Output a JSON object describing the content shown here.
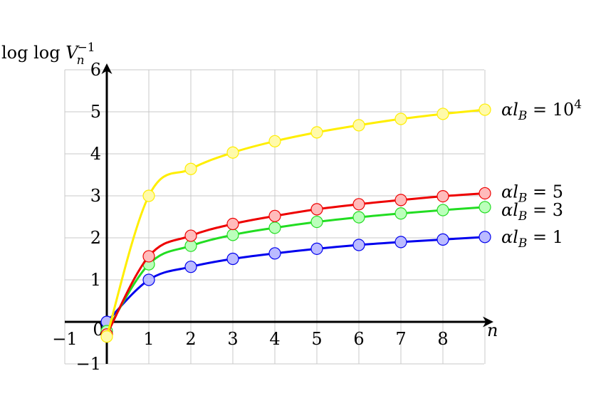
{
  "chart_data": {
    "type": "line",
    "ylabel": "log log V_n^{-1}",
    "xlabel": "n",
    "xlim": [
      -1,
      9
    ],
    "ylim": [
      -1,
      6
    ],
    "x_ticks": [
      -1,
      0,
      1,
      2,
      3,
      4,
      5,
      6,
      7,
      8
    ],
    "y_ticks": [
      -1,
      1,
      2,
      3,
      4,
      5,
      6
    ],
    "x_tick_labels": [
      "−1",
      "0",
      "1",
      "2",
      "3",
      "4",
      "5",
      "6",
      "7",
      "8"
    ],
    "y_tick_labels": [
      "−1",
      "1",
      "2",
      "3",
      "4",
      "5",
      "6"
    ],
    "grid": true,
    "series": [
      {
        "name": "αl_B = 10^4",
        "label_main": "αl",
        "label_sub": "B",
        "label_rest": " = 10",
        "label_sup": "4",
        "color": "#ffee00",
        "fill": "#fffaaa",
        "x": [
          0,
          1,
          2,
          3,
          4,
          5,
          6,
          7,
          8,
          9
        ],
        "y": [
          -0.35,
          3.0,
          3.64,
          4.03,
          4.3,
          4.51,
          4.68,
          4.83,
          4.95,
          5.05
        ]
      },
      {
        "name": "αl_B = 5",
        "label_main": "αl",
        "label_sub": "B",
        "label_rest": " = 5",
        "label_sup": "",
        "color": "#ee0000",
        "fill": "#ffbbbb",
        "x": [
          0,
          1,
          2,
          3,
          4,
          5,
          6,
          7,
          8,
          9
        ],
        "y": [
          -0.3,
          1.56,
          2.05,
          2.33,
          2.52,
          2.68,
          2.8,
          2.9,
          2.99,
          3.06
        ]
      },
      {
        "name": "αl_B = 3",
        "label_main": "αl",
        "label_sub": "B",
        "label_rest": " = 3",
        "label_sup": "",
        "color": "#22dd22",
        "fill": "#bbffbb",
        "x": [
          0,
          1,
          2,
          3,
          4,
          5,
          6,
          7,
          8,
          9
        ],
        "y": [
          -0.22,
          1.37,
          1.81,
          2.07,
          2.24,
          2.38,
          2.49,
          2.58,
          2.66,
          2.73
        ]
      },
      {
        "name": "αl_B = 1",
        "label_main": "αl",
        "label_sub": "B",
        "label_rest": " = 1",
        "label_sup": "",
        "color": "#0000ee",
        "fill": "#bbbbff",
        "x": [
          0,
          1,
          2,
          3,
          4,
          5,
          6,
          7,
          8,
          9
        ],
        "y": [
          0.0,
          1.0,
          1.31,
          1.5,
          1.63,
          1.74,
          1.83,
          1.9,
          1.96,
          2.02
        ]
      }
    ]
  }
}
